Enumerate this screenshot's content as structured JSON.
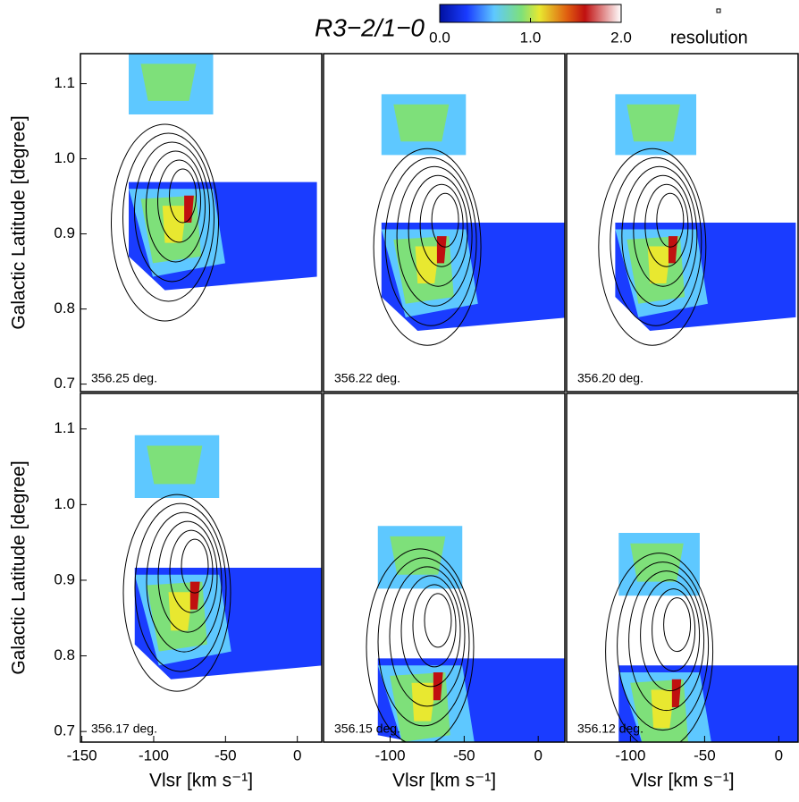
{
  "colorbar": {
    "title": "R3−2/1−0",
    "lim": [
      0,
      2
    ],
    "ticks": [
      {
        "value": 0,
        "label": "0.0"
      },
      {
        "value": 1,
        "label": "1.0"
      },
      {
        "value": 2,
        "label": "2.0"
      }
    ],
    "beam_label": "resolution"
  },
  "chart_data": [
    {
      "type": "contour",
      "label": "356.25 deg.",
      "xlim": [
        -151,
        17
      ],
      "ylim": [
        0.69,
        1.14
      ],
      "ylabel": "Galactic Latitude [degree]",
      "yticks": [
        0.7,
        0.8,
        0.9,
        {
          "value": 1,
          "label": "1.0"
        },
        1.1
      ]
    },
    {
      "type": "contour",
      "label": "356.22 deg.",
      "xlim": [
        -145,
        18
      ],
      "ylim": [
        0.69,
        1.14
      ]
    },
    {
      "type": "contour",
      "label": "356.20 deg.",
      "xlim": [
        -143,
        13
      ],
      "ylim": [
        0.69,
        1.14
      ]
    },
    {
      "type": "contour",
      "label": "356.17 deg.",
      "xlim": [
        -151,
        17
      ],
      "ylim": [
        0.686,
        1.147
      ],
      "ylabel": "Galactic Latitude [degree]",
      "xlabel": "Vlsr [km s⁻¹]",
      "xticks": [
        -150,
        -100,
        -50,
        0
      ],
      "yticks": [
        0.7,
        0.8,
        0.9,
        {
          "value": 1,
          "label": "1.0"
        },
        1.1
      ]
    },
    {
      "type": "contour",
      "label": "356.15 deg.",
      "xlim": [
        -145,
        18
      ],
      "ylim": [
        0.686,
        1.147
      ],
      "xlabel": "Vlsr [km s⁻¹]",
      "xticks": [
        -100,
        -50,
        0
      ]
    },
    {
      "type": "contour",
      "label": "356.12 deg.",
      "xlim": [
        -143,
        13
      ],
      "ylim": [
        0.686,
        1.147
      ],
      "xlabel": "Vlsr [km s⁻¹]",
      "xticks": [
        -100,
        -50,
        0
      ]
    }
  ]
}
